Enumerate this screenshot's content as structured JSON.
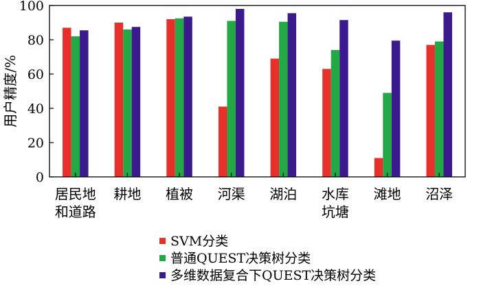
{
  "chart_data": {
    "type": "bar",
    "title": "",
    "xlabel": "",
    "ylabel": "用户精度/%",
    "ylim": [
      0,
      100
    ],
    "yticks": [
      "0",
      "20",
      "40",
      "60",
      "80",
      "100"
    ],
    "grid": false,
    "legend_position": "bottom",
    "categories": [
      [
        "居民地",
        "和道路"
      ],
      [
        "耕地"
      ],
      [
        "植被"
      ],
      [
        "河渠"
      ],
      [
        "湖泊"
      ],
      [
        "水库",
        "坑塘"
      ],
      [
        "滩地"
      ],
      [
        "沼泽"
      ]
    ],
    "series": [
      {
        "name": "SVM分类",
        "color": "#e8302a",
        "values": [
          87,
          90,
          92,
          41,
          69,
          63,
          11,
          77
        ]
      },
      {
        "name": "普通QUEST决策树分类",
        "color": "#22a845",
        "values": [
          82,
          86,
          92.5,
          91,
          90.5,
          74,
          49,
          79
        ]
      },
      {
        "name": "多维数据复合下QUEST决策树分类",
        "color": "#3b1a8e",
        "values": [
          85.5,
          87.5,
          93.5,
          98,
          95.5,
          91.5,
          79.5,
          96
        ]
      }
    ]
  }
}
